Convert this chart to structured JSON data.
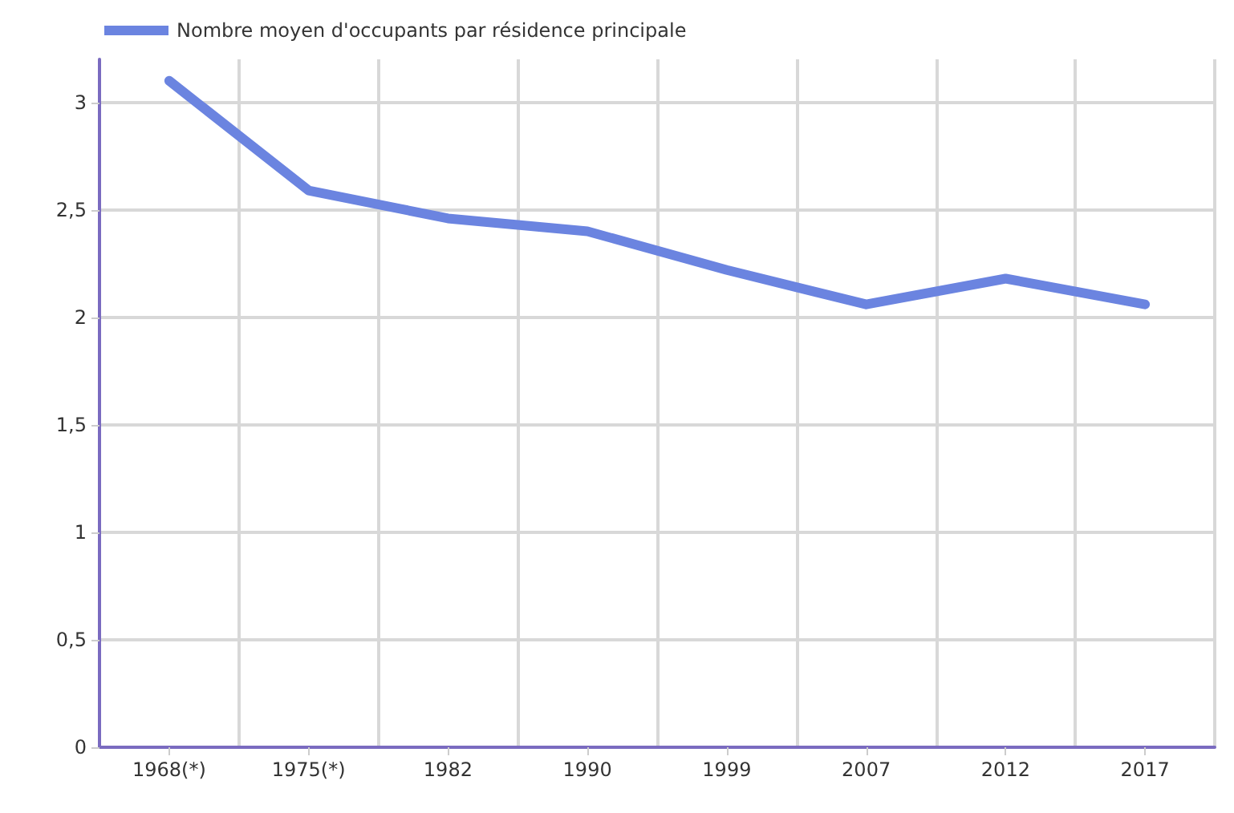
{
  "chart_data": {
    "type": "line",
    "categories": [
      "1968(*)",
      "1975(*)",
      "1982",
      "1990",
      "1999",
      "2007",
      "2012",
      "2017"
    ],
    "series": [
      {
        "name": "Nombre moyen d'occupants par résidence principale",
        "color": "#6b84e0",
        "values": [
          3.1,
          2.59,
          2.46,
          2.4,
          2.22,
          2.06,
          2.18,
          2.06
        ]
      }
    ],
    "ylim": [
      0,
      3.2
    ],
    "yticks": [
      0,
      {
        "value": 0.5,
        "label": "0,5"
      },
      1,
      {
        "value": 1.5,
        "label": "1,5"
      },
      2,
      {
        "value": 2.5,
        "label": "2,5"
      },
      3
    ],
    "grid": true,
    "legend": "top left",
    "marker": "none",
    "line_style": "solid"
  }
}
